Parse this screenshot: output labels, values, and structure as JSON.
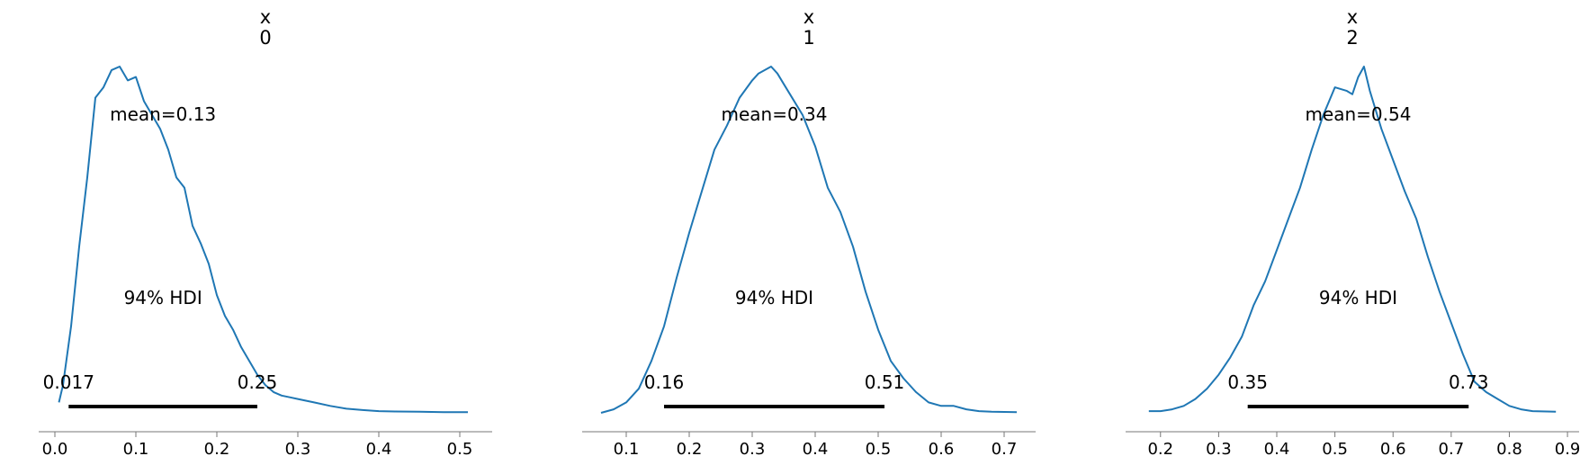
{
  "chart_data": [
    {
      "type": "line",
      "title_var": "x",
      "title_index": "0",
      "mean_label": "mean=0.13",
      "hdi_label": "94% HDI",
      "hdi_low_label": "0.017",
      "hdi_high_label": "0.25",
      "hdi": [
        0.017,
        0.25
      ],
      "xlim": [
        -0.02,
        0.54
      ],
      "xticks": [
        0.0,
        0.1,
        0.2,
        0.3,
        0.4,
        0.5
      ],
      "xtick_labels": [
        "0.0",
        "0.1",
        "0.2",
        "0.3",
        "0.4",
        "0.5"
      ],
      "grid": false,
      "x": [
        0.005,
        0.01,
        0.02,
        0.03,
        0.04,
        0.05,
        0.06,
        0.07,
        0.08,
        0.09,
        0.1,
        0.11,
        0.12,
        0.13,
        0.14,
        0.15,
        0.16,
        0.17,
        0.18,
        0.19,
        0.2,
        0.21,
        0.22,
        0.23,
        0.24,
        0.25,
        0.26,
        0.27,
        0.28,
        0.29,
        0.3,
        0.32,
        0.34,
        0.36,
        0.38,
        0.4,
        0.42,
        0.45,
        0.48,
        0.51
      ],
      "values": [
        0.03,
        0.08,
        0.25,
        0.48,
        0.68,
        0.91,
        0.94,
        0.99,
        1.0,
        0.96,
        0.97,
        0.9,
        0.86,
        0.82,
        0.76,
        0.68,
        0.65,
        0.54,
        0.49,
        0.43,
        0.34,
        0.28,
        0.24,
        0.19,
        0.15,
        0.11,
        0.08,
        0.06,
        0.05,
        0.045,
        0.04,
        0.03,
        0.02,
        0.012,
        0.008,
        0.005,
        0.004,
        0.003,
        0.002,
        0.002
      ]
    },
    {
      "type": "line",
      "title_var": "x",
      "title_index": "1",
      "mean_label": "mean=0.34",
      "hdi_label": "94% HDI",
      "hdi_low_label": "0.16",
      "hdi_high_label": "0.51",
      "hdi": [
        0.16,
        0.51
      ],
      "xlim": [
        0.03,
        0.75
      ],
      "xticks": [
        0.1,
        0.2,
        0.3,
        0.4,
        0.5,
        0.6,
        0.7
      ],
      "xtick_labels": [
        "0.1",
        "0.2",
        "0.3",
        "0.4",
        "0.5",
        "0.6",
        "0.7"
      ],
      "grid": false,
      "x": [
        0.06,
        0.08,
        0.1,
        0.12,
        0.14,
        0.16,
        0.18,
        0.2,
        0.22,
        0.24,
        0.26,
        0.28,
        0.3,
        0.31,
        0.32,
        0.33,
        0.34,
        0.35,
        0.36,
        0.38,
        0.4,
        0.42,
        0.44,
        0.46,
        0.48,
        0.5,
        0.52,
        0.54,
        0.56,
        0.58,
        0.6,
        0.62,
        0.64,
        0.66,
        0.68,
        0.72
      ],
      "values": [
        0.0,
        0.01,
        0.03,
        0.07,
        0.15,
        0.25,
        0.39,
        0.52,
        0.64,
        0.76,
        0.83,
        0.91,
        0.96,
        0.98,
        0.99,
        1.0,
        0.98,
        0.95,
        0.92,
        0.86,
        0.77,
        0.65,
        0.58,
        0.48,
        0.35,
        0.24,
        0.15,
        0.1,
        0.06,
        0.03,
        0.02,
        0.02,
        0.01,
        0.005,
        0.003,
        0.002
      ]
    },
    {
      "type": "line",
      "title_var": "x",
      "title_index": "2",
      "mean_label": "mean=0.54",
      "hdi_label": "94% HDI",
      "hdi_low_label": "0.35",
      "hdi_high_label": "0.73",
      "hdi": [
        0.35,
        0.73
      ],
      "xlim": [
        0.14,
        0.92
      ],
      "xticks": [
        0.2,
        0.3,
        0.4,
        0.5,
        0.6,
        0.7,
        0.8,
        0.9
      ],
      "xtick_labels": [
        "0.2",
        "0.3",
        "0.4",
        "0.5",
        "0.6",
        "0.7",
        "0.8",
        "0.9"
      ],
      "grid": false,
      "x": [
        0.18,
        0.2,
        0.22,
        0.24,
        0.26,
        0.28,
        0.3,
        0.32,
        0.34,
        0.36,
        0.38,
        0.4,
        0.42,
        0.44,
        0.46,
        0.48,
        0.5,
        0.52,
        0.53,
        0.54,
        0.55,
        0.56,
        0.58,
        0.6,
        0.62,
        0.64,
        0.66,
        0.68,
        0.7,
        0.72,
        0.74,
        0.76,
        0.78,
        0.8,
        0.82,
        0.84,
        0.88
      ],
      "values": [
        0.005,
        0.005,
        0.01,
        0.02,
        0.04,
        0.07,
        0.11,
        0.16,
        0.22,
        0.31,
        0.38,
        0.47,
        0.56,
        0.65,
        0.76,
        0.86,
        0.94,
        0.93,
        0.92,
        0.97,
        1.0,
        0.93,
        0.82,
        0.73,
        0.64,
        0.56,
        0.45,
        0.35,
        0.26,
        0.17,
        0.09,
        0.06,
        0.04,
        0.02,
        0.01,
        0.005,
        0.003
      ]
    }
  ],
  "colors": {
    "line": "#1f77b4",
    "hdi_bar": "#000000",
    "axis": "#777777",
    "text": "#000000"
  }
}
